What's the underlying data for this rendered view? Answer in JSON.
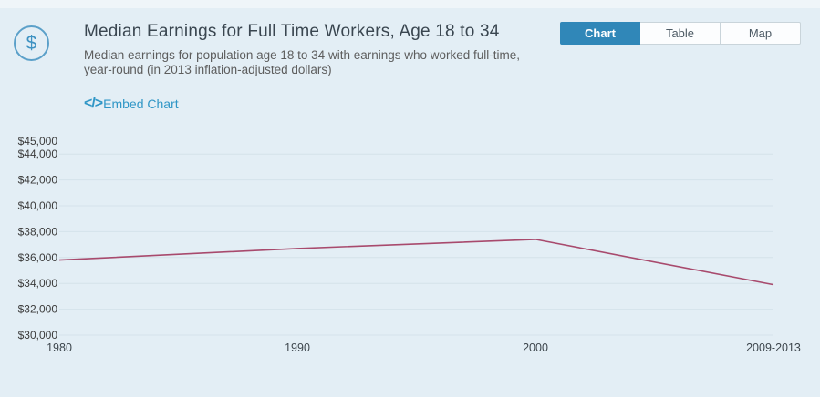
{
  "page": {
    "background": "#e3eef5",
    "accent": "#3087b8"
  },
  "header": {
    "icon": "dollar-icon",
    "icon_glyph": "$",
    "title": "Median Earnings for Full Time Workers, Age 18 to 34",
    "subtitle": "Median earnings for population age 18 to 34 with earnings who worked full-time, year-round (in 2013 inflation-adjusted dollars)",
    "tabs": [
      {
        "label": "Chart",
        "active": true
      },
      {
        "label": "Table",
        "active": false
      },
      {
        "label": "Map",
        "active": false
      }
    ],
    "embed_icon": "</>",
    "embed_label": "Embed Chart"
  },
  "chart_data": {
    "type": "line",
    "title": "Median Earnings for Full Time Workers, Age 18 to 34",
    "xlabel": "",
    "ylabel": "",
    "x": [
      "1980",
      "1990",
      "2000",
      "2009-2013"
    ],
    "series": [
      {
        "name": "Median earnings (2013 inflation-adjusted dollars)",
        "values": [
          35800,
          36700,
          37400,
          33900
        ]
      }
    ],
    "ylim": [
      30000,
      45000
    ],
    "grid": true,
    "legend": "none",
    "line_color": "#a84a6d",
    "yticks": [
      {
        "label": "$45,000",
        "value": 45000,
        "gridline": false
      },
      {
        "label": "$44,000",
        "value": 44000,
        "gridline": true
      },
      {
        "label": "$42,000",
        "value": 42000,
        "gridline": true
      },
      {
        "label": "$40,000",
        "value": 40000,
        "gridline": true
      },
      {
        "label": "$38,000",
        "value": 38000,
        "gridline": true
      },
      {
        "label": "$36,000",
        "value": 36000,
        "gridline": true
      },
      {
        "label": "$34,000",
        "value": 34000,
        "gridline": true
      },
      {
        "label": "$32,000",
        "value": 32000,
        "gridline": true
      },
      {
        "label": "$30,000",
        "value": 30000,
        "gridline": true
      }
    ]
  }
}
